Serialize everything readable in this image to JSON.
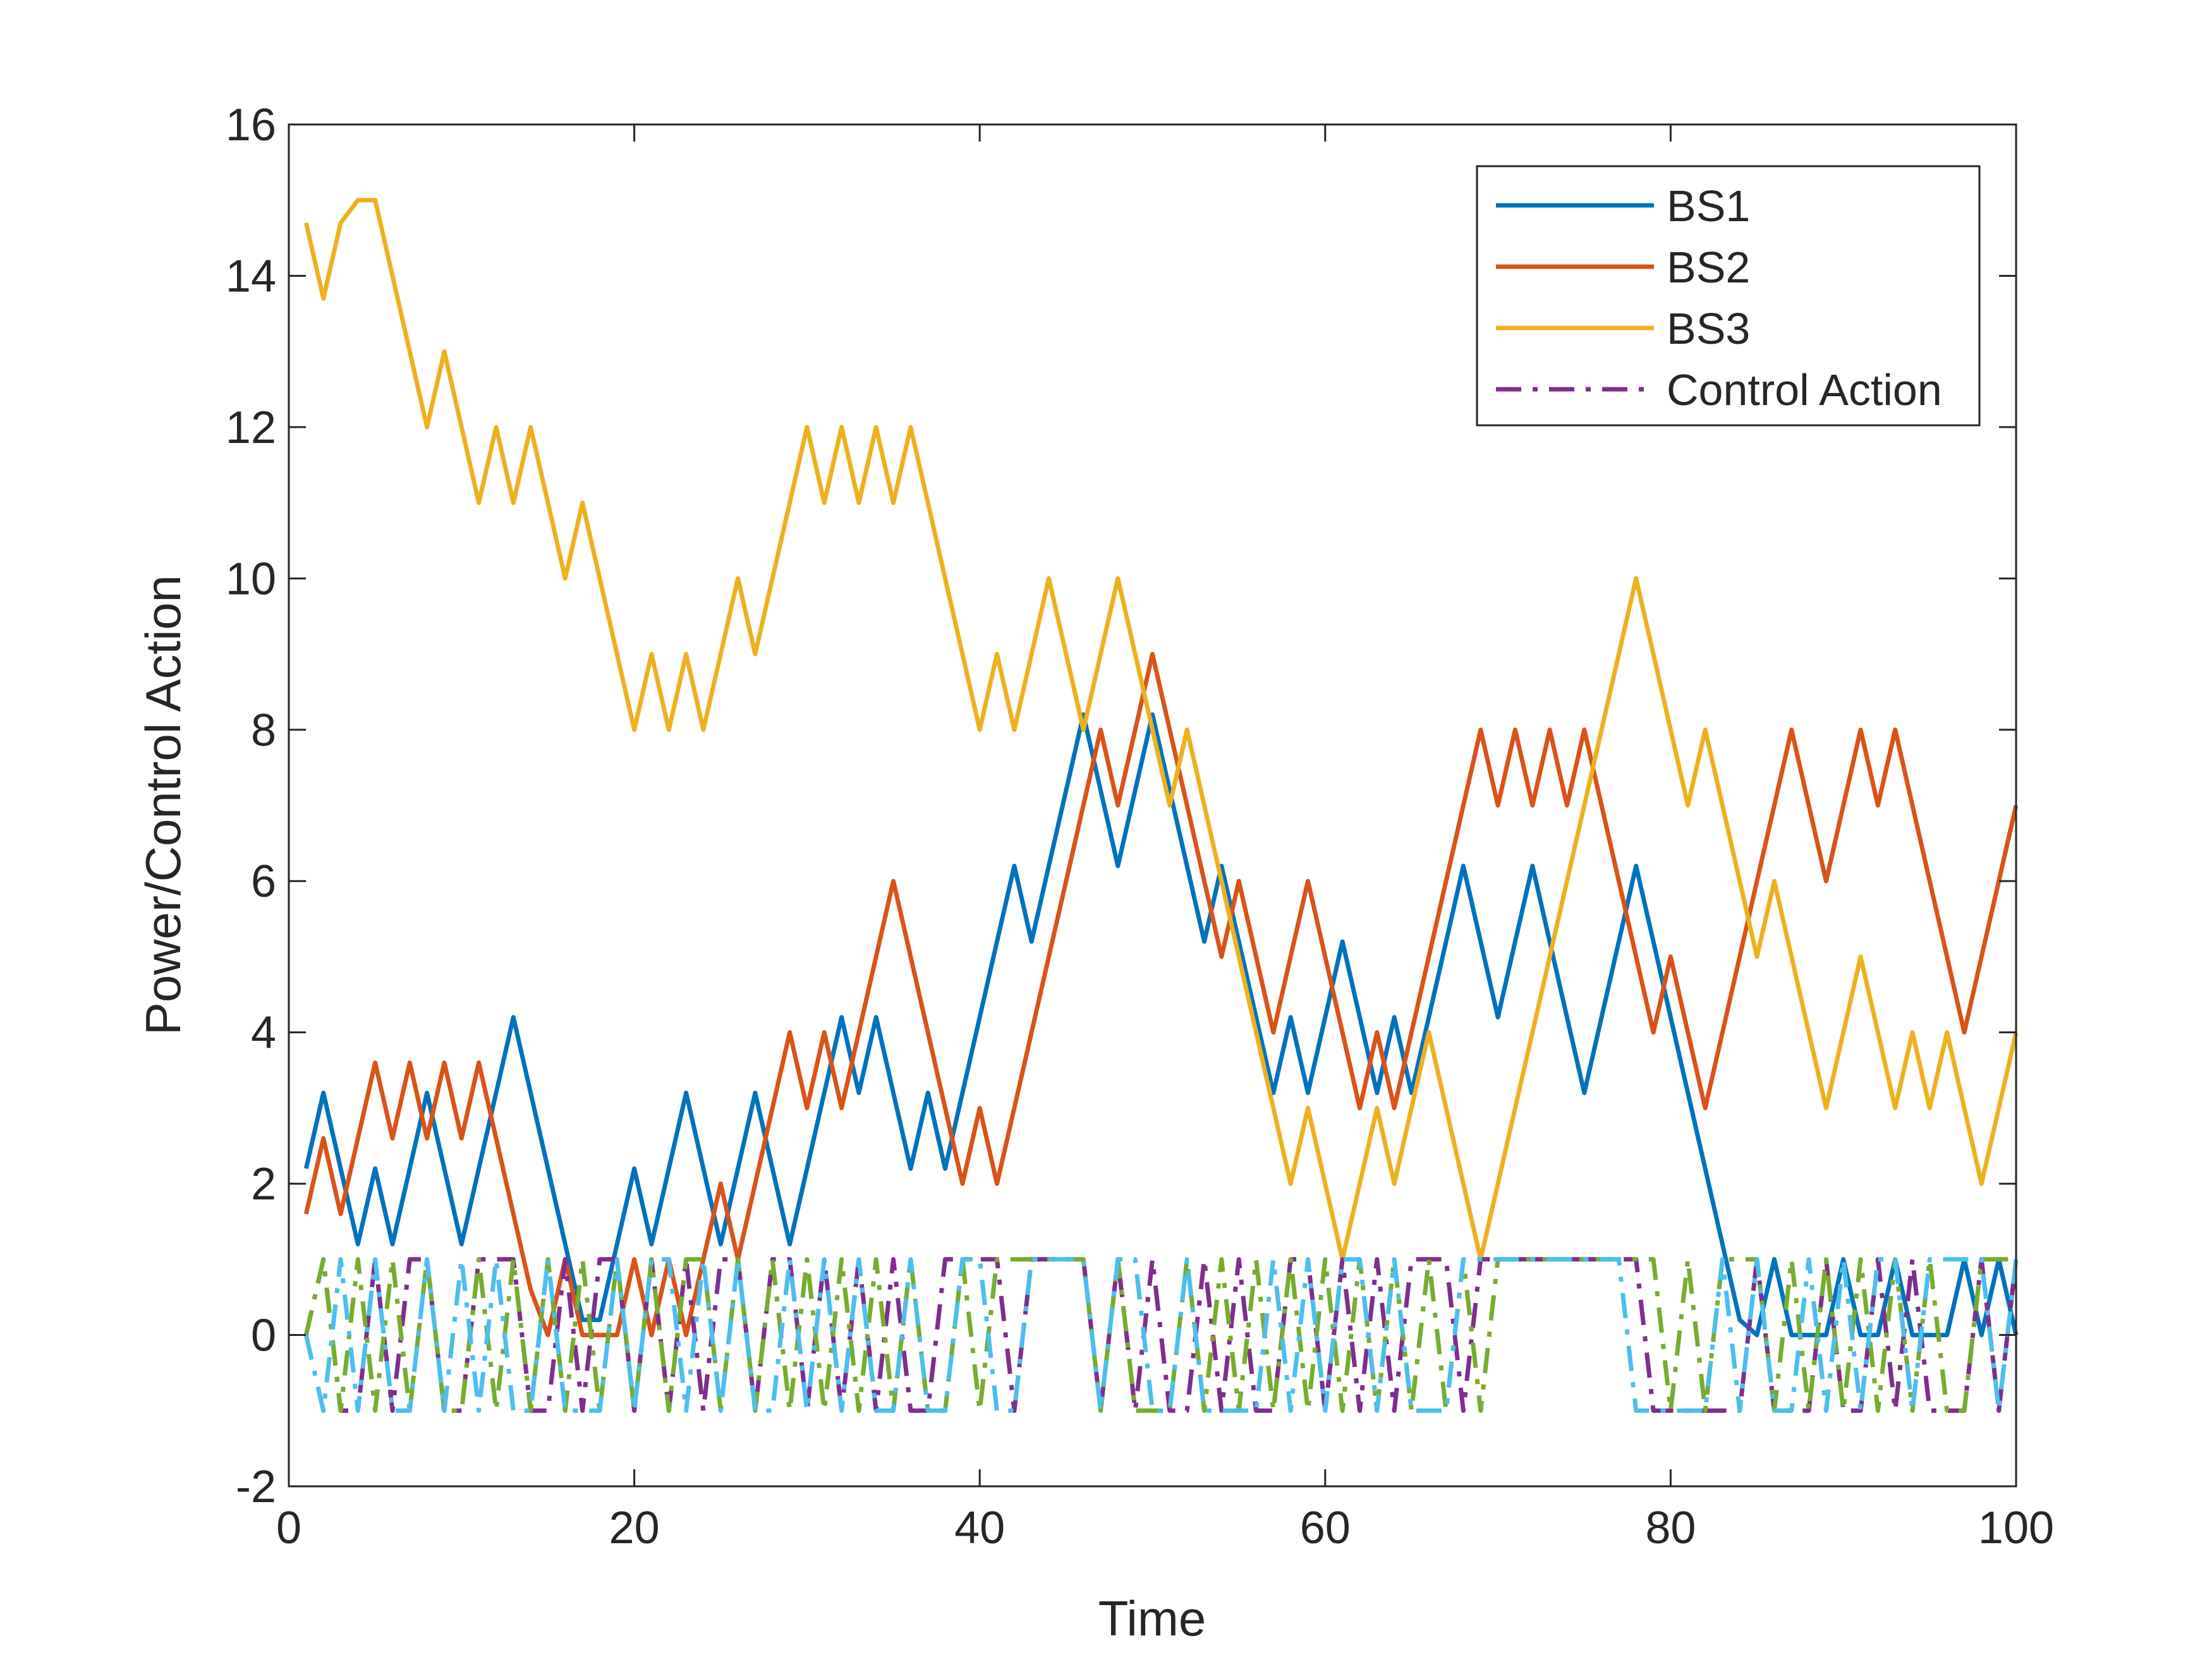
{
  "chart_data": {
    "type": "line",
    "title": "",
    "xlabel": "Time",
    "ylabel": "Power/Control Action",
    "xlim": [
      0,
      100
    ],
    "ylim": [
      -2,
      16
    ],
    "xticks": [
      0,
      20,
      40,
      60,
      80,
      100
    ],
    "yticks": [
      -2,
      0,
      2,
      4,
      6,
      8,
      10,
      12,
      14,
      16
    ],
    "xtick_labels": [
      "0",
      "20",
      "40",
      "60",
      "80",
      "100"
    ],
    "ytick_labels": [
      "-2",
      "0",
      "2",
      "4",
      "6",
      "8",
      "10",
      "12",
      "14",
      "16"
    ],
    "grid": false,
    "legend_position": "top-right",
    "legend": [
      "BS1",
      "BS2",
      "BS3",
      "Control Action"
    ],
    "series": [
      {
        "name": "BS1",
        "color": "#0072BD",
        "style": "solid",
        "x": [
          1,
          2,
          3,
          4,
          5,
          6,
          7,
          8,
          9,
          10,
          11,
          12,
          13,
          14,
          15,
          16,
          17,
          18,
          19,
          20,
          21,
          22,
          23,
          24,
          25,
          26,
          27,
          28,
          29,
          30,
          31,
          32,
          33,
          34,
          35,
          36,
          37,
          38,
          39,
          40,
          41,
          42,
          43,
          44,
          45,
          46,
          47,
          48,
          49,
          50,
          51,
          52,
          53,
          54,
          55,
          56,
          57,
          58,
          59,
          60,
          61,
          62,
          63,
          64,
          65,
          66,
          67,
          68,
          69,
          70,
          71,
          72,
          73,
          74,
          75,
          76,
          77,
          78,
          79,
          80,
          81,
          82,
          83,
          84,
          85,
          86,
          87,
          88,
          89,
          90,
          91,
          92,
          93,
          94,
          95,
          96,
          97,
          98,
          99,
          100
        ],
        "values": [
          2.2,
          3.2,
          2.2,
          1.2,
          2.2,
          1.2,
          2.2,
          3.2,
          2.2,
          1.2,
          2.2,
          3.2,
          4.2,
          3.2,
          2.2,
          1.2,
          0.2,
          0.2,
          1.2,
          2.2,
          1.2,
          2.2,
          3.2,
          2.2,
          1.2,
          2.2,
          3.2,
          2.2,
          1.2,
          2.2,
          3.2,
          4.2,
          3.2,
          4.2,
          3.2,
          2.2,
          3.2,
          2.2,
          3.2,
          4.2,
          5.2,
          6.2,
          5.2,
          6.2,
          7.2,
          8.2,
          7.2,
          6.2,
          7.2,
          8.2,
          7.2,
          6.2,
          5.2,
          6.2,
          5.2,
          4.2,
          3.2,
          4.2,
          3.2,
          4.2,
          5.2,
          4.2,
          3.2,
          4.2,
          3.2,
          4.2,
          5.2,
          6.2,
          5.2,
          4.2,
          5.2,
          6.2,
          5.2,
          4.2,
          3.2,
          4.2,
          5.2,
          6.2,
          5.2,
          4.2,
          3.2,
          2.2,
          1.2,
          0.2,
          0,
          1,
          0,
          0,
          0,
          1,
          0,
          0,
          1,
          0,
          0,
          0,
          1,
          0,
          1,
          0
        ]
      },
      {
        "name": "BS2",
        "color": "#D95319",
        "style": "solid",
        "x": [
          1,
          2,
          3,
          4,
          5,
          6,
          7,
          8,
          9,
          10,
          11,
          12,
          13,
          14,
          15,
          16,
          17,
          18,
          19,
          20,
          21,
          22,
          23,
          24,
          25,
          26,
          27,
          28,
          29,
          30,
          31,
          32,
          33,
          34,
          35,
          36,
          37,
          38,
          39,
          40,
          41,
          42,
          43,
          44,
          45,
          46,
          47,
          48,
          49,
          50,
          51,
          52,
          53,
          54,
          55,
          56,
          57,
          58,
          59,
          60,
          61,
          62,
          63,
          64,
          65,
          66,
          67,
          68,
          69,
          70,
          71,
          72,
          73,
          74,
          75,
          76,
          77,
          78,
          79,
          80,
          81,
          82,
          83,
          84,
          85,
          86,
          87,
          88,
          89,
          90,
          91,
          92,
          93,
          94,
          95,
          96,
          97,
          98,
          99,
          100
        ],
        "values": [
          1.6,
          2.6,
          1.6,
          2.6,
          3.6,
          2.6,
          3.6,
          2.6,
          3.6,
          2.6,
          3.6,
          2.6,
          1.6,
          0.6,
          0,
          1,
          0,
          0,
          0,
          1,
          0,
          1,
          0,
          1,
          2,
          1,
          2,
          3,
          4,
          3,
          4,
          3,
          4,
          5,
          6,
          5,
          4,
          3,
          2,
          3,
          2,
          3,
          4,
          5,
          6,
          7,
          8,
          7,
          8,
          9,
          8,
          7,
          6,
          5,
          6,
          5,
          4,
          5,
          6,
          5,
          4,
          3,
          4,
          3,
          4,
          5,
          6,
          7,
          8,
          7,
          8,
          7,
          8,
          7,
          8,
          7,
          6,
          5,
          4,
          5,
          4,
          3,
          4,
          5,
          6,
          7,
          8,
          7,
          6,
          7,
          8,
          7,
          8,
          7,
          6,
          5,
          4,
          5,
          6,
          7
        ]
      },
      {
        "name": "BS3",
        "color": "#EDB120",
        "style": "solid",
        "x": [
          1,
          2,
          3,
          4,
          5,
          6,
          7,
          8,
          9,
          10,
          11,
          12,
          13,
          14,
          15,
          16,
          17,
          18,
          19,
          20,
          21,
          22,
          23,
          24,
          25,
          26,
          27,
          28,
          29,
          30,
          31,
          32,
          33,
          34,
          35,
          36,
          37,
          38,
          39,
          40,
          41,
          42,
          43,
          44,
          45,
          46,
          47,
          48,
          49,
          50,
          51,
          52,
          53,
          54,
          55,
          56,
          57,
          58,
          59,
          60,
          61,
          62,
          63,
          64,
          65,
          66,
          67,
          68,
          69,
          70,
          71,
          72,
          73,
          74,
          75,
          76,
          77,
          78,
          79,
          80,
          81,
          82,
          83,
          84,
          85,
          86,
          87,
          88,
          89,
          90,
          91,
          92,
          93,
          94,
          95,
          96,
          97,
          98,
          99,
          100
        ],
        "values": [
          14.7,
          13.7,
          14.7,
          15,
          15,
          14,
          13,
          12,
          13,
          12,
          11,
          12,
          11,
          12,
          11,
          10,
          11,
          10,
          9,
          8,
          9,
          8,
          9,
          8,
          9,
          10,
          9,
          10,
          11,
          12,
          11,
          12,
          11,
          12,
          11,
          12,
          11,
          10,
          9,
          8,
          9,
          8,
          9,
          10,
          9,
          8,
          9,
          10,
          9,
          8,
          7,
          8,
          7,
          6,
          5,
          4,
          3,
          2,
          3,
          2,
          1,
          2,
          3,
          2,
          3,
          4,
          3,
          2,
          1,
          2,
          3,
          4,
          5,
          6,
          7,
          8,
          9,
          10,
          9,
          8,
          7,
          8,
          7,
          6,
          5,
          6,
          5,
          4,
          3,
          4,
          5,
          4,
          3,
          4,
          3,
          4,
          3,
          2,
          3,
          4
        ]
      },
      {
        "name": "Control Action",
        "color": "#7E2F8E",
        "style": "dashdot",
        "x": [
          1,
          2,
          3,
          4,
          5,
          6,
          7,
          8,
          9,
          10,
          11,
          12,
          13,
          14,
          15,
          16,
          17,
          18,
          19,
          20,
          21,
          22,
          23,
          24,
          25,
          26,
          27,
          28,
          29,
          30,
          31,
          32,
          33,
          34,
          35,
          36,
          37,
          38,
          39,
          40,
          41,
          42,
          43,
          44,
          45,
          46,
          47,
          48,
          49,
          50,
          51,
          52,
          53,
          54,
          55,
          56,
          57,
          58,
          59,
          60,
          61,
          62,
          63,
          64,
          65,
          66,
          67,
          68,
          69,
          70,
          71,
          72,
          73,
          74,
          75,
          76,
          77,
          78,
          79,
          80,
          81,
          82,
          83,
          84,
          85,
          86,
          87,
          88,
          89,
          90,
          91,
          92,
          93,
          94,
          95,
          96,
          97,
          98,
          99,
          100
        ],
        "values": [
          0,
          1,
          -1,
          -1,
          1,
          -1,
          1,
          1,
          -1,
          -1,
          1,
          1,
          1,
          -1,
          -1,
          1,
          -1,
          1,
          1,
          -1,
          1,
          -1,
          1,
          -1,
          1,
          1,
          -1,
          1,
          1,
          -1,
          1,
          -1,
          1,
          -1,
          1,
          -1,
          -1,
          1,
          1,
          1,
          1,
          -1,
          1,
          1,
          1,
          1,
          -1,
          1,
          -1,
          1,
          -1,
          -1,
          1,
          -1,
          1,
          -1,
          -1,
          1,
          1,
          -1,
          1,
          -1,
          1,
          -1,
          1,
          1,
          1,
          -1,
          1,
          1,
          1,
          1,
          1,
          1,
          1,
          1,
          1,
          1,
          -1,
          -1,
          -1,
          -1,
          -1,
          -1,
          1,
          -1,
          -1,
          -1,
          1,
          -1,
          -1,
          1,
          -1,
          1,
          -1,
          -1,
          -1,
          1,
          -1,
          1
        ]
      },
      {
        "name": "",
        "color": "#77AC30",
        "style": "dashdot",
        "x": [
          1,
          2,
          3,
          4,
          5,
          6,
          7,
          8,
          9,
          10,
          11,
          12,
          13,
          14,
          15,
          16,
          17,
          18,
          19,
          20,
          21,
          22,
          23,
          24,
          25,
          26,
          27,
          28,
          29,
          30,
          31,
          32,
          33,
          34,
          35,
          36,
          37,
          38,
          39,
          40,
          41,
          42,
          43,
          44,
          45,
          46,
          47,
          48,
          49,
          50,
          51,
          52,
          53,
          54,
          55,
          56,
          57,
          58,
          59,
          60,
          61,
          62,
          63,
          64,
          65,
          66,
          67,
          68,
          69,
          70,
          71,
          72,
          73,
          74,
          75,
          76,
          77,
          78,
          79,
          80,
          81,
          82,
          83,
          84,
          85,
          86,
          87,
          88,
          89,
          90,
          91,
          92,
          93,
          94,
          95,
          96,
          97,
          98,
          99,
          100
        ],
        "values": [
          0,
          1,
          -1,
          1,
          -1,
          1,
          -1,
          1,
          -1,
          -1,
          1,
          -1,
          1,
          -1,
          1,
          -1,
          1,
          -1,
          1,
          -1,
          1,
          -1,
          1,
          1,
          -1,
          1,
          -1,
          1,
          -1,
          1,
          -1,
          1,
          -1,
          1,
          -1,
          1,
          -1,
          -1,
          1,
          -1,
          1,
          1,
          1,
          1,
          1,
          1,
          -1,
          1,
          -1,
          -1,
          -1,
          1,
          -1,
          1,
          -1,
          1,
          -1,
          1,
          -1,
          1,
          -1,
          1,
          -1,
          1,
          -1,
          1,
          -1,
          1,
          -1,
          1,
          1,
          1,
          1,
          1,
          1,
          1,
          1,
          1,
          1,
          -1,
          1,
          -1,
          1,
          1,
          1,
          -1,
          1,
          -1,
          1,
          -1,
          1,
          -1,
          1,
          -1,
          1,
          -1,
          -1,
          1,
          1,
          1
        ]
      },
      {
        "name": "",
        "color": "#4DBEEE",
        "style": "dashdot",
        "x": [
          1,
          2,
          3,
          4,
          5,
          6,
          7,
          8,
          9,
          10,
          11,
          12,
          13,
          14,
          15,
          16,
          17,
          18,
          19,
          20,
          21,
          22,
          23,
          24,
          25,
          26,
          27,
          28,
          29,
          30,
          31,
          32,
          33,
          34,
          35,
          36,
          37,
          38,
          39,
          40,
          41,
          42,
          43,
          44,
          45,
          46,
          47,
          48,
          49,
          50,
          51,
          52,
          53,
          54,
          55,
          56,
          57,
          58,
          59,
          60,
          61,
          62,
          63,
          64,
          65,
          66,
          67,
          68,
          69,
          70,
          71,
          72,
          73,
          74,
          75,
          76,
          77,
          78,
          79,
          80,
          81,
          82,
          83,
          84,
          85,
          86,
          87,
          88,
          89,
          90,
          91,
          92,
          93,
          94,
          95,
          96,
          97,
          98,
          99,
          100
        ],
        "values": [
          0,
          -1,
          1,
          -1,
          1,
          -1,
          -1,
          1,
          -1,
          1,
          -1,
          1,
          -1,
          -1,
          1,
          -1,
          -1,
          -1,
          1,
          -1,
          1,
          1,
          -1,
          1,
          -1,
          1,
          -1,
          -1,
          1,
          -1,
          1,
          -1,
          1,
          -1,
          -1,
          1,
          -1,
          -1,
          1,
          1,
          -1,
          -1,
          1,
          1,
          1,
          1,
          -1,
          1,
          1,
          -1,
          -1,
          1,
          -1,
          -1,
          -1,
          -1,
          1,
          -1,
          1,
          -1,
          1,
          1,
          -1,
          1,
          -1,
          -1,
          -1,
          1,
          1,
          1,
          1,
          1,
          1,
          1,
          1,
          1,
          1,
          -1,
          -1,
          -1,
          -1,
          -1,
          1,
          -1,
          1,
          -1,
          -1,
          1,
          -1,
          1,
          -1,
          1,
          1,
          -1,
          1,
          1,
          1,
          1,
          -1,
          1
        ]
      }
    ]
  }
}
